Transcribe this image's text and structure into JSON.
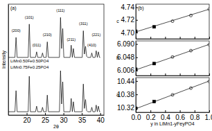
{
  "chart_data": [
    {
      "type": "line",
      "title": "(a)",
      "xlabel": "2θ",
      "ylabel": "Intensity",
      "xlim": [
        15,
        41
      ],
      "xticks": [
        20,
        25,
        30,
        35,
        40
      ],
      "ylim": [
        0,
        100
      ],
      "tick_labels": "x",
      "x": [
        15,
        16.8,
        17.1,
        17.4,
        20.4,
        20.7,
        21.0,
        22.4,
        22.7,
        23.0,
        24.0,
        24.3,
        24.6,
        25.3,
        25.6,
        25.9,
        28.9,
        29.2,
        29.5,
        29.8,
        30.1,
        31.8,
        32.1,
        32.4,
        32.7,
        33.0,
        35.1,
        35.4,
        35.7,
        36.0,
        36.3,
        36.6,
        37.4,
        37.7,
        38.0,
        38.6,
        38.9,
        39.2,
        39.5,
        39.8,
        40
      ],
      "series": [
        {
          "name": "LiMn0.50Fe0.50PO4",
          "color": "#000000",
          "values": [
            52,
            52,
            70,
            52,
            52,
            82,
            52,
            52,
            57,
            52,
            52,
            56,
            52,
            52,
            66,
            52,
            52,
            88,
            60,
            78,
            52,
            52,
            63,
            52,
            60,
            52,
            52,
            76,
            55,
            62,
            53,
            52,
            52,
            56,
            52,
            52,
            58,
            52,
            57,
            52,
            52
          ]
        },
        {
          "name": "LiMn0.75Fe0.25PO4",
          "color": "#000000",
          "values": [
            3,
            3,
            22,
            3,
            3,
            35,
            3,
            3,
            8,
            3,
            3,
            7,
            3,
            3,
            18,
            3,
            3,
            40,
            10,
            30,
            3,
            3,
            15,
            3,
            12,
            3,
            3,
            28,
            6,
            14,
            4,
            3,
            3,
            7,
            3,
            3,
            9,
            3,
            8,
            3,
            3
          ]
        }
      ],
      "annotations": [
        {
          "text": "(200)",
          "x": 17.1,
          "y": 75
        },
        {
          "text": "(101)",
          "x": 20.7,
          "y": 87
        },
        {
          "text": "(011)",
          "x": 22.7,
          "y": 62
        },
        {
          "text": "(210)",
          "x": 25.6,
          "y": 71
        },
        {
          "text": "(111)",
          "x": 29.2,
          "y": 93
        },
        {
          "text": "(211)",
          "x": 32.1,
          "y": 67
        },
        {
          "text": "(311)",
          "x": 35.4,
          "y": 81
        },
        {
          "text": "(410)",
          "x": 37.7,
          "y": 62
        },
        {
          "text": "(221)",
          "x": 38.9,
          "y": 71
        }
      ]
    },
    {
      "type": "scatter",
      "title": "(b)",
      "ylabel": "c",
      "xlim": [
        0,
        1
      ],
      "xticks": [
        {
          "value": 0,
          "label": "0.0"
        },
        0.2,
        0.4,
        0.6,
        0.8,
        {
          "value": 1,
          "label": "1.0"
        }
      ],
      "ylim": [
        4.69,
        4.745
      ],
      "yticks": [
        {
          "value": 4.7,
          "label": "4.70"
        },
        4.72,
        4.74
      ],
      "tick_labels": "y",
      "series": [
        {
          "marker": "square",
          "color": "#000000",
          "x": [
            0,
            0.25
          ],
          "values": [
            4.702,
            4.709
          ]
        },
        {
          "marker": "open-circle",
          "color": "#000000",
          "x": [
            0.5,
            0.75,
            1
          ],
          "values": [
            4.718,
            4.727,
            4.737
          ]
        },
        {
          "type": "line",
          "color": "#000000",
          "x": [
            0,
            1
          ],
          "values": [
            4.701,
            4.737
          ]
        }
      ]
    },
    {
      "type": "scatter",
      "ylabel": "b",
      "xlim": [
        0,
        1
      ],
      "xticks": [
        {
          "value": 0,
          "label": "0.0"
        },
        0.2,
        0.4,
        0.6,
        0.8,
        {
          "value": 1,
          "label": "1.0"
        }
      ],
      "ylim": [
        5.99,
        6.1
      ],
      "yticks": [
        6.006,
        6.048,
        {
          "value": 6.09,
          "label": "6.090"
        }
      ],
      "tick_labels": "y",
      "series": [
        {
          "marker": "square",
          "color": "#000000",
          "x": [
            0,
            0.25
          ],
          "values": [
            6.01,
            6.028
          ]
        },
        {
          "marker": "open-circle",
          "color": "#000000",
          "x": [
            0.5,
            0.75,
            1
          ],
          "values": [
            6.049,
            6.069,
            6.088
          ]
        },
        {
          "type": "line",
          "color": "#000000",
          "x": [
            0,
            1
          ],
          "values": [
            6.008,
            6.089
          ]
        }
      ]
    },
    {
      "type": "scatter",
      "ylabel": "a",
      "xlabel": "y in LiMn1-yFeyPO4",
      "xlim": [
        0,
        1
      ],
      "xticks": [
        {
          "value": 0,
          "label": "0.0"
        },
        0.2,
        0.4,
        0.6,
        0.8,
        {
          "value": 1,
          "label": "1.0"
        }
      ],
      "ylim": [
        10.3,
        10.455
      ],
      "yticks": [
        10.32,
        10.38,
        10.44
      ],
      "series": [
        {
          "marker": "square",
          "color": "#000000",
          "x": [
            0,
            0.25
          ],
          "values": [
            10.318,
            10.348
          ]
        },
        {
          "marker": "open-circle",
          "color": "#000000",
          "x": [
            0.5,
            0.75,
            1
          ],
          "values": [
            10.378,
            10.408,
            10.438
          ]
        },
        {
          "type": "line",
          "color": "#000000",
          "x": [
            0,
            1
          ],
          "values": [
            10.316,
            10.44
          ]
        }
      ]
    }
  ]
}
